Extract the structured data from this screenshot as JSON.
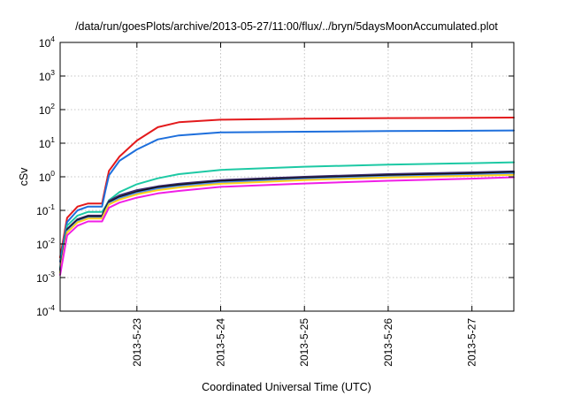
{
  "chart_data": {
    "type": "line",
    "title": "/data/run/goesPlots/archive/2013-05-27/11:00/flux/../bryn/5daysMoonAccumulated.plot",
    "xlabel": "Coordinated Universal Time (UTC)",
    "ylabel": "cSv",
    "y_scale": "log",
    "ylim": [
      0.0001,
      10000
    ],
    "xlim": [
      "2013-05-22 02:00",
      "2013-05-27 12:00"
    ],
    "grid": true,
    "x_ticks": [
      "2013-5-23",
      "2013-5-24",
      "2013-5-25",
      "2013-5-26",
      "2013-5-27"
    ],
    "y_ticks": [
      {
        "value": 0.0001,
        "base": "10",
        "exp": "-4"
      },
      {
        "value": 0.001,
        "base": "10",
        "exp": "-3"
      },
      {
        "value": 0.01,
        "base": "10",
        "exp": "-2"
      },
      {
        "value": 0.1,
        "base": "10",
        "exp": "-1"
      },
      {
        "value": 1,
        "base": "10",
        "exp": "0"
      },
      {
        "value": 10,
        "base": "10",
        "exp": "1"
      },
      {
        "value": 100,
        "base": "10",
        "exp": "2"
      },
      {
        "value": 1000,
        "base": "10",
        "exp": "3"
      },
      {
        "value": 10000,
        "base": "10",
        "exp": "4"
      }
    ],
    "series": [
      {
        "color": "#e31a1c",
        "x": [
          "2013-05-22 02:00",
          "2013-05-22 04:00",
          "2013-05-22 07:00",
          "2013-05-22 10:00",
          "2013-05-22 14:00",
          "2013-05-22 15:00",
          "2013-05-22 16:00",
          "2013-05-22 19:00",
          "2013-05-23 00:00",
          "2013-05-23 06:00",
          "2013-05-23 12:00",
          "2013-05-24 00:00",
          "2013-05-25 00:00",
          "2013-05-26 00:00",
          "2013-05-27 00:00",
          "2013-05-27 12:00"
        ],
        "y": [
          0.004,
          0.06,
          0.13,
          0.16,
          0.16,
          0.5,
          1.5,
          4,
          12,
          30,
          42,
          50,
          54,
          56,
          57,
          58
        ]
      },
      {
        "color": "#1e6fdc",
        "x": [
          "2013-05-22 02:00",
          "2013-05-22 04:00",
          "2013-05-22 07:00",
          "2013-05-22 10:00",
          "2013-05-22 14:00",
          "2013-05-22 15:00",
          "2013-05-22 16:00",
          "2013-05-22 19:00",
          "2013-05-23 00:00",
          "2013-05-23 06:00",
          "2013-05-23 12:00",
          "2013-05-24 00:00",
          "2013-05-25 00:00",
          "2013-05-26 00:00",
          "2013-05-27 00:00",
          "2013-05-27 12:00"
        ],
        "y": [
          0.003,
          0.045,
          0.1,
          0.13,
          0.13,
          0.4,
          1.1,
          3,
          6.5,
          13,
          17,
          21,
          22,
          23,
          23.5,
          24
        ]
      },
      {
        "color": "#1dc9a4",
        "x": [
          "2013-05-22 02:00",
          "2013-05-22 04:00",
          "2013-05-22 07:00",
          "2013-05-22 10:00",
          "2013-05-22 14:00",
          "2013-05-22 15:00",
          "2013-05-22 16:00",
          "2013-05-22 19:00",
          "2013-05-23 00:00",
          "2013-05-23 06:00",
          "2013-05-23 12:00",
          "2013-05-24 00:00",
          "2013-05-25 00:00",
          "2013-05-26 00:00",
          "2013-05-27 00:00",
          "2013-05-27 12:00"
        ],
        "y": [
          0.002,
          0.035,
          0.07,
          0.09,
          0.09,
          0.13,
          0.2,
          0.35,
          0.6,
          0.9,
          1.2,
          1.6,
          2,
          2.3,
          2.55,
          2.7
        ]
      },
      {
        "color": "#3a2a6e",
        "x": [
          "2013-05-22 02:00",
          "2013-05-22 04:00",
          "2013-05-22 07:00",
          "2013-05-22 10:00",
          "2013-05-22 14:00",
          "2013-05-22 15:00",
          "2013-05-22 16:00",
          "2013-05-22 19:00",
          "2013-05-23 00:00",
          "2013-05-23 06:00",
          "2013-05-23 12:00",
          "2013-05-24 00:00",
          "2013-05-25 00:00",
          "2013-05-26 00:00",
          "2013-05-27 00:00",
          "2013-05-27 12:00"
        ],
        "y": [
          0.0018,
          0.028,
          0.055,
          0.07,
          0.07,
          0.12,
          0.19,
          0.28,
          0.4,
          0.52,
          0.62,
          0.8,
          1,
          1.2,
          1.35,
          1.45
        ]
      },
      {
        "color": "#111111",
        "x": [
          "2013-05-22 02:00",
          "2013-05-22 04:00",
          "2013-05-22 07:00",
          "2013-05-22 10:00",
          "2013-05-22 14:00",
          "2013-05-22 15:00",
          "2013-05-22 16:00",
          "2013-05-22 19:00",
          "2013-05-23 00:00",
          "2013-05-23 06:00",
          "2013-05-23 12:00",
          "2013-05-24 00:00",
          "2013-05-25 00:00",
          "2013-05-26 00:00",
          "2013-05-27 00:00",
          "2013-05-27 12:00"
        ],
        "y": [
          0.0016,
          0.026,
          0.05,
          0.065,
          0.065,
          0.11,
          0.17,
          0.25,
          0.36,
          0.48,
          0.57,
          0.74,
          0.93,
          1.1,
          1.25,
          1.35
        ]
      },
      {
        "color": "#4c8cf0",
        "x": [
          "2013-05-22 02:00",
          "2013-05-22 04:00",
          "2013-05-22 07:00",
          "2013-05-22 10:00",
          "2013-05-22 14:00",
          "2013-05-22 15:00",
          "2013-05-22 16:00",
          "2013-05-22 19:00",
          "2013-05-23 00:00",
          "2013-05-23 06:00",
          "2013-05-23 12:00",
          "2013-05-24 00:00",
          "2013-05-25 00:00",
          "2013-05-26 00:00",
          "2013-05-27 00:00",
          "2013-05-27 12:00"
        ],
        "y": [
          0.0015,
          0.024,
          0.047,
          0.06,
          0.06,
          0.1,
          0.16,
          0.23,
          0.33,
          0.44,
          0.52,
          0.68,
          0.86,
          1.02,
          1.15,
          1.25
        ]
      },
      {
        "color": "#ffd21a",
        "x": [
          "2013-05-22 02:00",
          "2013-05-22 04:00",
          "2013-05-22 07:00",
          "2013-05-22 10:00",
          "2013-05-22 14:00",
          "2013-05-22 15:00",
          "2013-05-22 16:00",
          "2013-05-22 19:00",
          "2013-05-23 00:00",
          "2013-05-23 06:00",
          "2013-05-23 12:00",
          "2013-05-24 00:00",
          "2013-05-25 00:00",
          "2013-05-26 00:00",
          "2013-05-27 00:00",
          "2013-05-27 12:00"
        ],
        "y": [
          0.0014,
          0.022,
          0.044,
          0.057,
          0.057,
          0.095,
          0.15,
          0.21,
          0.3,
          0.4,
          0.48,
          0.62,
          0.8,
          0.95,
          1.07,
          1.15
        ]
      },
      {
        "color": "#f01ee6",
        "x": [
          "2013-05-22 02:00",
          "2013-05-22 04:00",
          "2013-05-22 07:00",
          "2013-05-22 10:00",
          "2013-05-22 14:00",
          "2013-05-22 15:00",
          "2013-05-22 16:00",
          "2013-05-22 19:00",
          "2013-05-23 00:00",
          "2013-05-23 06:00",
          "2013-05-23 12:00",
          "2013-05-24 00:00",
          "2013-05-25 00:00",
          "2013-05-26 00:00",
          "2013-05-27 00:00",
          "2013-05-27 12:00"
        ],
        "y": [
          0.0012,
          0.018,
          0.035,
          0.047,
          0.047,
          0.075,
          0.12,
          0.17,
          0.24,
          0.32,
          0.38,
          0.5,
          0.63,
          0.76,
          0.88,
          0.97
        ]
      }
    ]
  }
}
